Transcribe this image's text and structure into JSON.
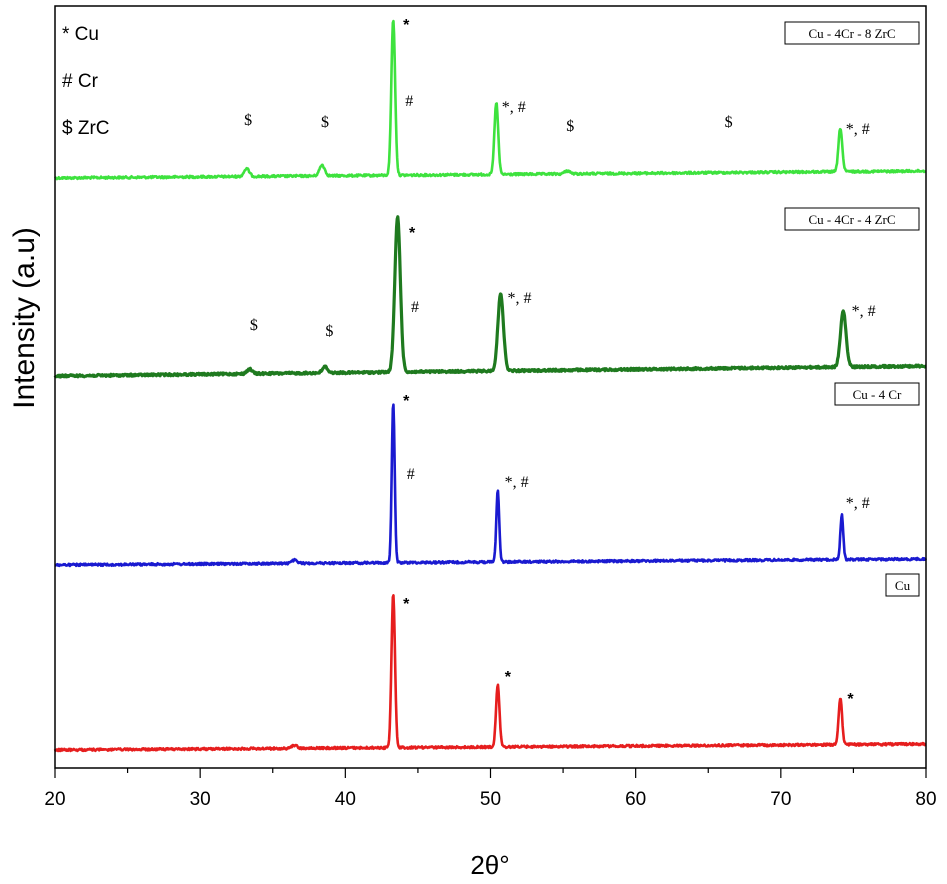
{
  "chart_data": {
    "type": "line",
    "xlabel": "2θ°",
    "ylabel": "Intensity (a.u)",
    "xlim": [
      20,
      80
    ],
    "xticks": [
      20,
      30,
      40,
      50,
      60,
      70,
      80
    ],
    "phase_key": [
      {
        "symbol": "*",
        "name": "Cu"
      },
      {
        "symbol": "#",
        "name": "Cr"
      },
      {
        "symbol": "$",
        "name": "ZrC"
      }
    ],
    "series": [
      {
        "name": "Cu - 4Cr - 8 ZrC",
        "color": "#3ee23e",
        "peaks": [
          {
            "x": 33.2,
            "height": 0.05
          },
          {
            "x": 38.4,
            "height": 0.07
          },
          {
            "x": 43.3,
            "height": 1.0
          },
          {
            "x": 50.4,
            "height": 0.46
          },
          {
            "x": 55.3,
            "height": 0.02
          },
          {
            "x": 74.1,
            "height": 0.28
          }
        ],
        "annotations": [
          {
            "x": 33.3,
            "label": "$"
          },
          {
            "x": 38.6,
            "label": "$"
          },
          {
            "x": 44.2,
            "label": "*"
          },
          {
            "x": 44.4,
            "label": "#"
          },
          {
            "x": 51.6,
            "label": "*, #"
          },
          {
            "x": 55.5,
            "label": "$"
          },
          {
            "x": 66.4,
            "label": "$"
          },
          {
            "x": 75.3,
            "label": "*, #"
          }
        ]
      },
      {
        "name": "Cu - 4Cr - 4 ZrC",
        "color": "#1f7a1f",
        "peaks": [
          {
            "x": 33.4,
            "height": 0.03
          },
          {
            "x": 38.6,
            "height": 0.04
          },
          {
            "x": 43.6,
            "height": 1.0
          },
          {
            "x": 50.7,
            "height": 0.5
          },
          {
            "x": 74.3,
            "height": 0.36
          }
        ],
        "annotations": [
          {
            "x": 33.7,
            "label": "$"
          },
          {
            "x": 38.9,
            "label": "$"
          },
          {
            "x": 44.6,
            "label": "*"
          },
          {
            "x": 44.8,
            "label": "#"
          },
          {
            "x": 52.0,
            "label": "*, #"
          },
          {
            "x": 75.7,
            "label": "*, #"
          }
        ]
      },
      {
        "name": "Cu - 4 Cr",
        "color": "#1a1ad0",
        "peaks": [
          {
            "x": 36.5,
            "height": 0.02
          },
          {
            "x": 43.3,
            "height": 1.0
          },
          {
            "x": 50.5,
            "height": 0.45
          },
          {
            "x": 74.2,
            "height": 0.28
          }
        ],
        "annotations": [
          {
            "x": 44.2,
            "label": "*"
          },
          {
            "x": 44.5,
            "label": "#"
          },
          {
            "x": 51.8,
            "label": "*, #"
          },
          {
            "x": 75.3,
            "label": "*, #"
          }
        ]
      },
      {
        "name": "Cu",
        "color": "#e61e1e",
        "peaks": [
          {
            "x": 36.5,
            "height": 0.02
          },
          {
            "x": 43.3,
            "height": 1.0
          },
          {
            "x": 50.5,
            "height": 0.4
          },
          {
            "x": 74.1,
            "height": 0.3
          }
        ],
        "annotations": [
          {
            "x": 44.2,
            "label": "*"
          },
          {
            "x": 51.2,
            "label": "*"
          },
          {
            "x": 74.8,
            "label": "*"
          }
        ]
      }
    ]
  }
}
